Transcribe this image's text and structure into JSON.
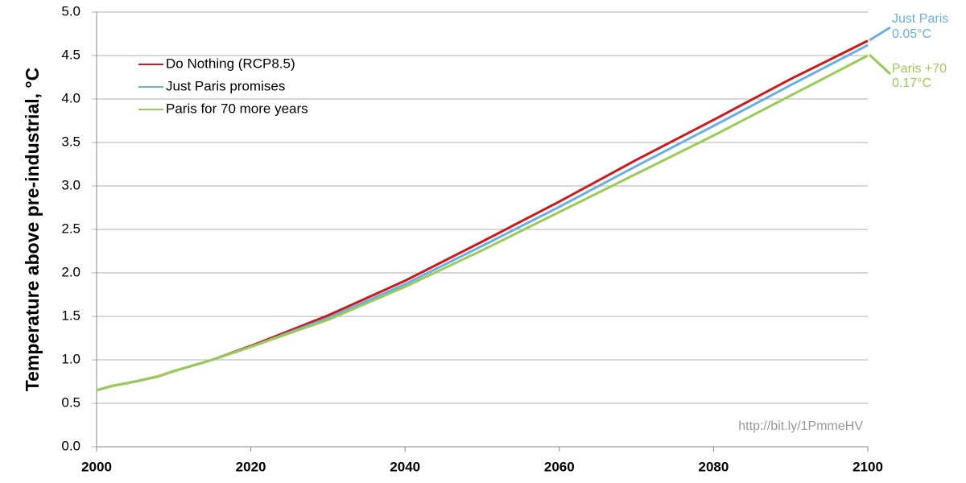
{
  "chart_data": {
    "type": "line",
    "ylabel": "Temperature above pre-industrial, °C",
    "x": [
      2000,
      2002,
      2005,
      2008,
      2010,
      2015,
      2020,
      2030,
      2040,
      2050,
      2060,
      2070,
      2080,
      2090,
      2100
    ],
    "series": [
      {
        "name": "Do Nothing (RCP8.5)",
        "color": "#cc1a1a",
        "values": [
          0.65,
          0.7,
          0.75,
          0.81,
          0.87,
          1.0,
          1.16,
          1.51,
          1.91,
          2.36,
          2.82,
          3.3,
          3.76,
          4.23,
          4.67
        ]
      },
      {
        "name": "Just Paris promises",
        "color": "#6aaee6",
        "values": [
          0.65,
          0.7,
          0.75,
          0.81,
          0.87,
          1.0,
          1.15,
          1.48,
          1.87,
          2.31,
          2.76,
          3.23,
          3.69,
          4.16,
          4.62
        ]
      },
      {
        "name": "Paris for 70 more years",
        "color": "#99cc55",
        "values": [
          0.65,
          0.7,
          0.75,
          0.81,
          0.87,
          1.0,
          1.15,
          1.46,
          1.84,
          2.26,
          2.7,
          3.14,
          3.58,
          4.04,
          4.5
        ]
      }
    ],
    "xlim": [
      2000,
      2100
    ],
    "xticks": [
      2000,
      2020,
      2040,
      2060,
      2080,
      2100
    ],
    "ylim": [
      0,
      5
    ],
    "yticks": [
      {
        "value": 0,
        "label": "0.0"
      },
      0.5,
      {
        "value": 1,
        "label": "1.0"
      },
      1.5,
      {
        "value": 2,
        "label": "2.0"
      },
      2.5,
      {
        "value": 3,
        "label": "3.0"
      },
      3.5,
      {
        "value": 4,
        "label": "4.0"
      },
      4.5,
      {
        "value": 5,
        "label": "5.0"
      }
    ],
    "grid": true,
    "legend": "upper left",
    "annotations": [
      {
        "text": "Just Paris",
        "color": "#6aaee6"
      },
      {
        "text": "0.05°C",
        "color": "#6aaee6"
      },
      {
        "text": "Paris +70",
        "color": "#99cc55"
      },
      {
        "text": "0.17°C",
        "color": "#99cc55"
      },
      {
        "text": "http://bit.ly/1PmmeHV",
        "color": "#999999"
      }
    ]
  }
}
